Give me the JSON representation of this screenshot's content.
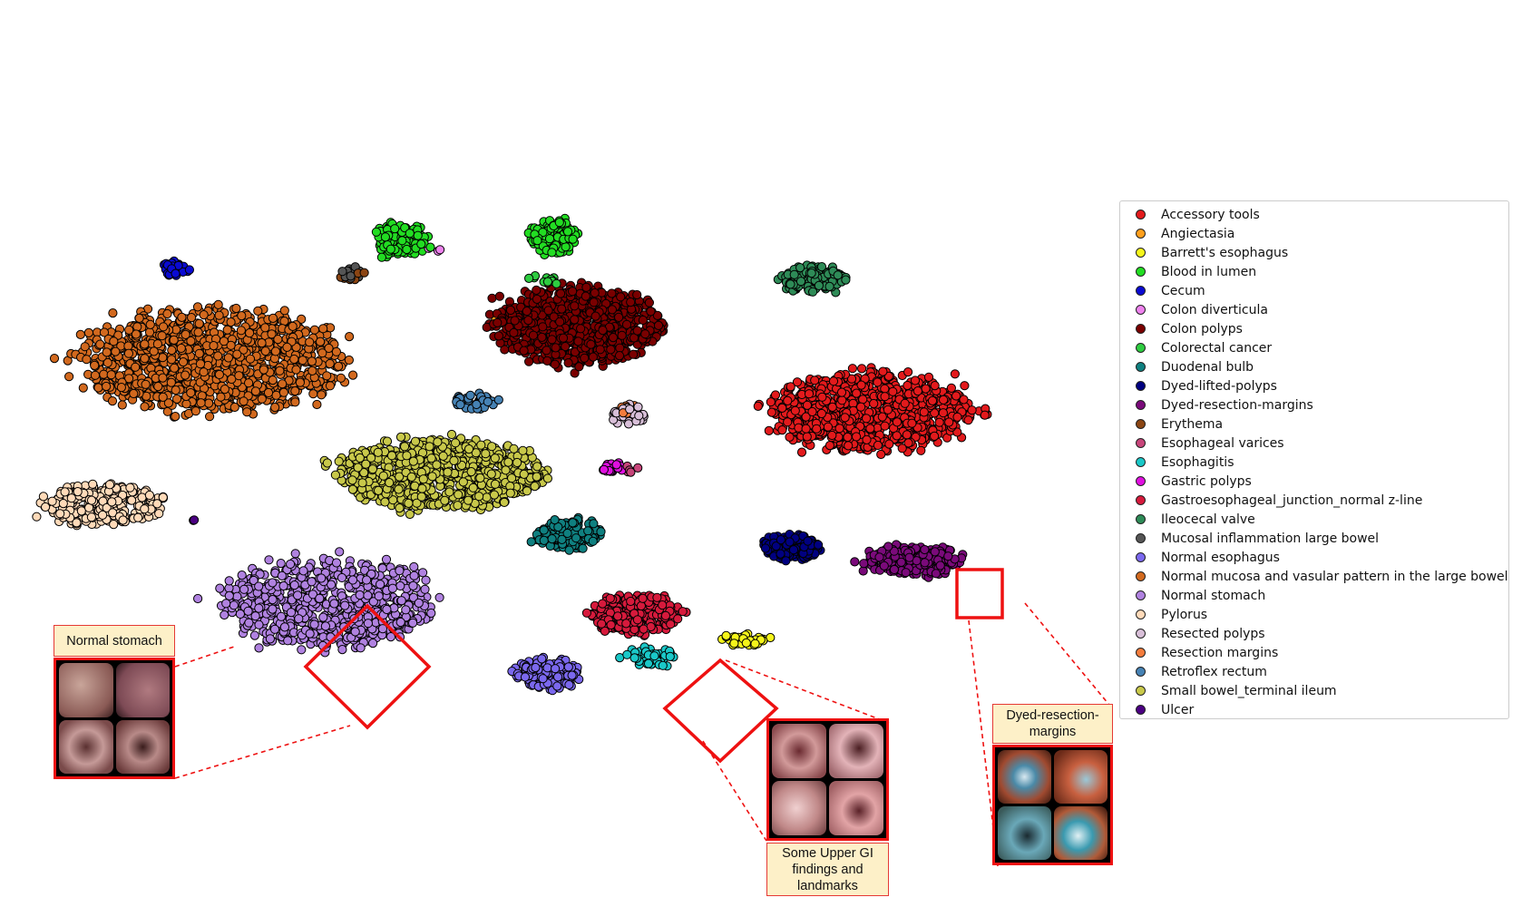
{
  "chart_data": {
    "type": "scatter",
    "title": "",
    "xlabel": "",
    "ylabel": "",
    "grid": false,
    "axes_visible": false,
    "legend_position": "right",
    "marker_edge_color": "#000000",
    "series": [
      {
        "name": "Accessory tools",
        "color": "#e31a1c",
        "clusters": [
          {
            "cx": 0.812,
            "cy": 0.57,
            "rx": 0.095,
            "ry": 0.055,
            "n": 900
          }
        ]
      },
      {
        "name": "Angiectasia",
        "color": "#ff9f1c",
        "clusters": [
          {
            "cx": 0.455,
            "cy": 0.705,
            "rx": 0.004,
            "ry": 0.004,
            "n": 3
          }
        ]
      },
      {
        "name": "Barrett's esophagus",
        "color": "#f5f51a",
        "clusters": [
          {
            "cx": 0.69,
            "cy": 0.225,
            "rx": 0.025,
            "ry": 0.01,
            "n": 35
          }
        ]
      },
      {
        "name": "Blood in lumen",
        "color": "#22dd22",
        "clusters": [
          {
            "cx": 0.365,
            "cy": 0.83,
            "rx": 0.025,
            "ry": 0.025,
            "n": 120
          },
          {
            "cx": 0.51,
            "cy": 0.835,
            "rx": 0.024,
            "ry": 0.024,
            "n": 110
          }
        ]
      },
      {
        "name": "Cecum",
        "color": "#0a0ad2",
        "clusters": [
          {
            "cx": 0.15,
            "cy": 0.785,
            "rx": 0.015,
            "ry": 0.012,
            "n": 30
          }
        ]
      },
      {
        "name": "Colon diverticula",
        "color": "#ee82ee",
        "clusters": [
          {
            "cx": 0.395,
            "cy": 0.815,
            "rx": 0.006,
            "ry": 0.006,
            "n": 3
          }
        ]
      },
      {
        "name": "Colon polyps",
        "color": "#7a0000",
        "clusters": [
          {
            "cx": 0.53,
            "cy": 0.7,
            "rx": 0.075,
            "ry": 0.055,
            "n": 900
          }
        ]
      },
      {
        "name": "Colorectal cancer",
        "color": "#2ecc40",
        "clusters": [
          {
            "cx": 0.5,
            "cy": 0.76,
            "rx": 0.02,
            "ry": 0.02,
            "n": 12
          }
        ]
      },
      {
        "name": "Duodenal bulb",
        "color": "#0f8080",
        "clusters": [
          {
            "cx": 0.525,
            "cy": 0.385,
            "rx": 0.032,
            "ry": 0.022,
            "n": 130
          }
        ]
      },
      {
        "name": "Dyed-lifted-polyps",
        "color": "#000080",
        "clusters": [
          {
            "cx": 0.735,
            "cy": 0.365,
            "rx": 0.026,
            "ry": 0.018,
            "n": 170
          }
        ]
      },
      {
        "name": "Dyed-resection-margins",
        "color": "#7a0a7a",
        "clusters": [
          {
            "cx": 0.85,
            "cy": 0.345,
            "rx": 0.045,
            "ry": 0.022,
            "n": 230
          }
        ]
      },
      {
        "name": "Erythema",
        "color": "#8b4513",
        "clusters": [
          {
            "cx": 0.32,
            "cy": 0.775,
            "rx": 0.012,
            "ry": 0.008,
            "n": 8
          }
        ]
      },
      {
        "name": "Esophageal varices",
        "color": "#c7457a",
        "clusters": [
          {
            "cx": 0.58,
            "cy": 0.485,
            "rx": 0.01,
            "ry": 0.008,
            "n": 5
          }
        ]
      },
      {
        "name": "Esophagitis",
        "color": "#1ac8c8",
        "clusters": [
          {
            "cx": 0.6,
            "cy": 0.2,
            "rx": 0.025,
            "ry": 0.015,
            "n": 40
          }
        ]
      },
      {
        "name": "Gastric polyps",
        "color": "#e010e0",
        "clusters": [
          {
            "cx": 0.565,
            "cy": 0.485,
            "rx": 0.01,
            "ry": 0.008,
            "n": 20
          }
        ]
      },
      {
        "name": "Gastroesophageal_junction_normal z-line",
        "color": "#d61a3c",
        "clusters": [
          {
            "cx": 0.585,
            "cy": 0.265,
            "rx": 0.042,
            "ry": 0.028,
            "n": 300
          }
        ]
      },
      {
        "name": "Ileocecal valve",
        "color": "#2e8b57",
        "clusters": [
          {
            "cx": 0.755,
            "cy": 0.77,
            "rx": 0.03,
            "ry": 0.02,
            "n": 150
          }
        ]
      },
      {
        "name": "Mucosal inflammation large bowel",
        "color": "#555555",
        "clusters": [
          {
            "cx": 0.315,
            "cy": 0.78,
            "rx": 0.012,
            "ry": 0.008,
            "n": 12
          }
        ]
      },
      {
        "name": "Normal esophagus",
        "color": "#7b68ee",
        "clusters": [
          {
            "cx": 0.505,
            "cy": 0.175,
            "rx": 0.03,
            "ry": 0.022,
            "n": 150
          }
        ]
      },
      {
        "name": "Normal mucosa and vasular pattern in the large bowel",
        "color": "#d2691e",
        "clusters": [
          {
            "cx": 0.185,
            "cy": 0.645,
            "rx": 0.12,
            "ry": 0.075,
            "n": 1100
          }
        ]
      },
      {
        "name": "Normal stomach",
        "color": "#b082e0",
        "clusters": [
          {
            "cx": 0.295,
            "cy": 0.28,
            "rx": 0.095,
            "ry": 0.065,
            "n": 700
          }
        ]
      },
      {
        "name": "Pylorus",
        "color": "#ffdab9",
        "clusters": [
          {
            "cx": 0.08,
            "cy": 0.43,
            "rx": 0.055,
            "ry": 0.03,
            "n": 260
          }
        ]
      },
      {
        "name": "Resected polyps",
        "color": "#d8bfd8",
        "clusters": [
          {
            "cx": 0.58,
            "cy": 0.565,
            "rx": 0.015,
            "ry": 0.015,
            "n": 40
          }
        ]
      },
      {
        "name": "Resection margins",
        "color": "#f47c3c",
        "clusters": [
          {
            "cx": 0.58,
            "cy": 0.575,
            "rx": 0.01,
            "ry": 0.01,
            "n": 10
          }
        ]
      },
      {
        "name": "Retroflex rectum",
        "color": "#4682b4",
        "clusters": [
          {
            "cx": 0.435,
            "cy": 0.585,
            "rx": 0.02,
            "ry": 0.012,
            "n": 35
          }
        ]
      },
      {
        "name": "Small bowel_terminal ileum",
        "color": "#c8c84a",
        "clusters": [
          {
            "cx": 0.4,
            "cy": 0.475,
            "rx": 0.095,
            "ry": 0.05,
            "n": 900
          }
        ]
      },
      {
        "name": "Ulcer",
        "color": "#4b0082",
        "clusters": [
          {
            "cx": 0.17,
            "cy": 0.41,
            "rx": 0.005,
            "ry": 0.005,
            "n": 2
          }
        ]
      }
    ],
    "annotations": [
      {
        "label": "Normal stomach"
      },
      {
        "label": "Some Upper GI findings and landmarks"
      },
      {
        "label": "Dyed-resection-margins"
      }
    ]
  }
}
